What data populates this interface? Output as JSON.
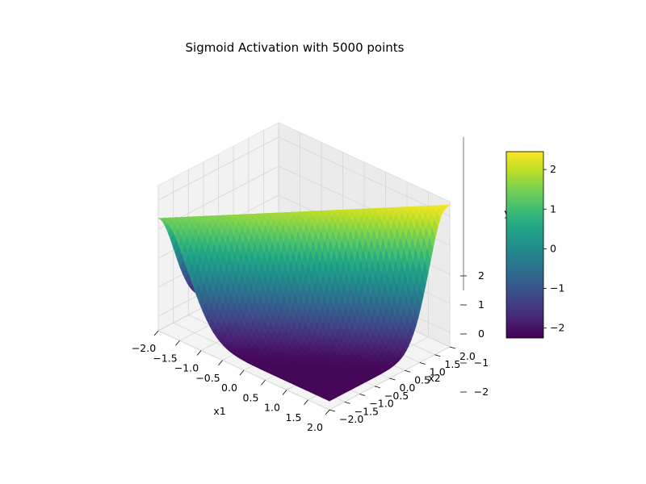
{
  "chart_data": {
    "type": "surface3d",
    "title": "Sigmoid Activation with 5000 points",
    "xlabel": "x1",
    "ylabel": "x2",
    "zlabel": "y",
    "xlim": [
      -2.0,
      2.0
    ],
    "ylim": [
      -2.0,
      2.0
    ],
    "zlim": [
      -2.5,
      2.5
    ],
    "x_ticks": [
      -2.0,
      -1.5,
      -1.0,
      -0.5,
      0.0,
      0.5,
      1.0,
      1.5,
      2.0
    ],
    "x_tick_labels": [
      "−2.0",
      "−1.5",
      "−1.0",
      "−0.5",
      "0.0",
      "0.5",
      "1.0",
      "1.5",
      "2.0"
    ],
    "y_ticks": [
      -2.0,
      -1.5,
      -1.0,
      -0.5,
      0.0,
      0.5,
      1.0,
      1.5,
      2.0
    ],
    "y_tick_labels": [
      "−2.0",
      "−1.5",
      "−1.0",
      "−0.5",
      "0.0",
      "0.5",
      "1.0",
      "1.5",
      "2.0"
    ],
    "z_ticks": [
      -2,
      -1,
      0,
      1,
      2
    ],
    "z_tick_labels": [
      "−2",
      "−1",
      "0",
      "1",
      "2"
    ],
    "surface": {
      "x_range": [
        -2.0,
        2.0
      ],
      "y_range": [
        -2.0,
        2.0
      ],
      "grid_size": 50,
      "z_min": -2.2,
      "z_max": 2.45
    },
    "colormap": "viridis",
    "colorbar": {
      "range": [
        -2.25,
        2.45
      ],
      "ticks": [
        -2,
        -1,
        0,
        1,
        2
      ],
      "tick_labels": [
        "−2",
        "−1",
        "0",
        "1",
        "2"
      ]
    },
    "grid": true
  }
}
